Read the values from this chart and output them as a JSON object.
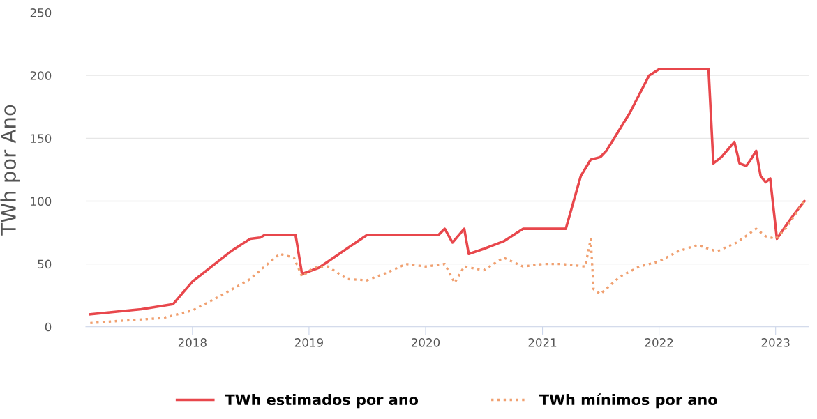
{
  "chart_data": {
    "type": "line",
    "ylabel": "TWh por Ano",
    "xlim": [
      "2017-02-01",
      "2023-04-15"
    ],
    "xticks": [
      {
        "value": "2018-01-01",
        "label": "2018"
      },
      {
        "value": "2019-01-01",
        "label": "2019"
      },
      {
        "value": "2020-01-01",
        "label": "2020"
      },
      {
        "value": "2021-01-01",
        "label": "2021"
      },
      {
        "value": "2022-01-01",
        "label": "2022"
      },
      {
        "value": "2023-01-01",
        "label": "2023"
      }
    ],
    "ylim": [
      0,
      250
    ],
    "yticks": [
      0,
      50,
      100,
      150,
      200,
      250
    ],
    "grid": "y",
    "legend": "bottom",
    "series": [
      {
        "name": "TWh estimados por ano",
        "color": "#e8474c",
        "line_style": "solid",
        "x": [
          "2017-02-15",
          "2017-07-25",
          "2017-11-01",
          "2018-01-01",
          "2018-05-01",
          "2018-07-01",
          "2018-08-01",
          "2018-08-15",
          "2018-11-20",
          "2018-12-10",
          "2019-02-01",
          "2019-07-01",
          "2020-02-10",
          "2020-03-01",
          "2020-03-25",
          "2020-05-01",
          "2020-05-15",
          "2020-07-01",
          "2020-09-01",
          "2020-11-01",
          "2021-03-15",
          "2021-05-01",
          "2021-06-01",
          "2021-07-01",
          "2021-07-20",
          "2021-10-01",
          "2021-12-01",
          "2022-01-01",
          "2022-06-05",
          "2022-06-20",
          "2022-07-15",
          "2022-08-25",
          "2022-09-10",
          "2022-10-01",
          "2022-10-15",
          "2022-11-01",
          "2022-11-15",
          "2022-12-01",
          "2022-12-15",
          "2023-01-05",
          "2023-02-01",
          "2023-03-01",
          "2023-04-01"
        ],
        "values": [
          10,
          14,
          18,
          36,
          60,
          70,
          71,
          73,
          73,
          42,
          47,
          73,
          73,
          78,
          67,
          78,
          58,
          62,
          68,
          78,
          78,
          120,
          133,
          135,
          140,
          170,
          200,
          205,
          205,
          130,
          135,
          147,
          130,
          128,
          133,
          140,
          120,
          115,
          118,
          70,
          80,
          90,
          100
        ]
      },
      {
        "name": "TWh mínimos por ano",
        "color": "#f0a070",
        "line_style": "dotted",
        "x": [
          "2017-02-15",
          "2017-06-01",
          "2017-10-01",
          "2018-01-01",
          "2018-04-01",
          "2018-07-01",
          "2018-08-01",
          "2018-10-01",
          "2018-11-15",
          "2018-12-10",
          "2019-01-15",
          "2019-03-01",
          "2019-05-01",
          "2019-07-01",
          "2019-09-01",
          "2019-11-01",
          "2020-01-01",
          "2020-03-01",
          "2020-04-01",
          "2020-05-01",
          "2020-07-01",
          "2020-09-01",
          "2020-11-01",
          "2021-01-01",
          "2021-03-01",
          "2021-05-15",
          "2021-06-01",
          "2021-06-10",
          "2021-07-01",
          "2021-09-01",
          "2021-11-01",
          "2022-01-01",
          "2022-03-01",
          "2022-05-01",
          "2022-07-01",
          "2022-09-01",
          "2022-11-01",
          "2022-12-01",
          "2023-01-01",
          "2023-02-01",
          "2023-04-01"
        ],
        "values": [
          3,
          5,
          7,
          13,
          25,
          38,
          45,
          58,
          55,
          40,
          47,
          48,
          38,
          37,
          43,
          50,
          48,
          50,
          35,
          48,
          45,
          55,
          48,
          50,
          50,
          48,
          70,
          30,
          26,
          40,
          48,
          52,
          60,
          65,
          60,
          67,
          78,
          72,
          70,
          78,
          100
        ]
      }
    ]
  }
}
